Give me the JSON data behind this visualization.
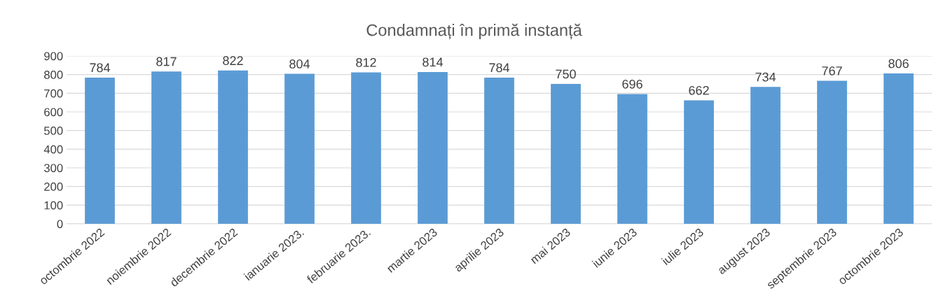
{
  "chart_data": {
    "type": "bar",
    "title": "Condamnați în primă instanță",
    "categories": [
      "octombrie 2022",
      "noiembrie 2022",
      "decembrie 2022",
      "ianuarie 2023.",
      "februarie 2023.",
      "martie 2023",
      "aprilie 2023",
      "mai 2023",
      "iunie 2023",
      "iulie 2023",
      "august 2023",
      "septembrie 2023",
      "octombrie 2023"
    ],
    "values": [
      784,
      817,
      822,
      804,
      812,
      814,
      784,
      750,
      696,
      662,
      734,
      767,
      806
    ],
    "color": "#5b9bd5",
    "data_labels": true,
    "grid": "y",
    "legend": false,
    "ylim": [
      0,
      900
    ],
    "yticks": [
      0,
      100,
      200,
      300,
      400,
      500,
      600,
      700,
      800,
      900
    ]
  }
}
